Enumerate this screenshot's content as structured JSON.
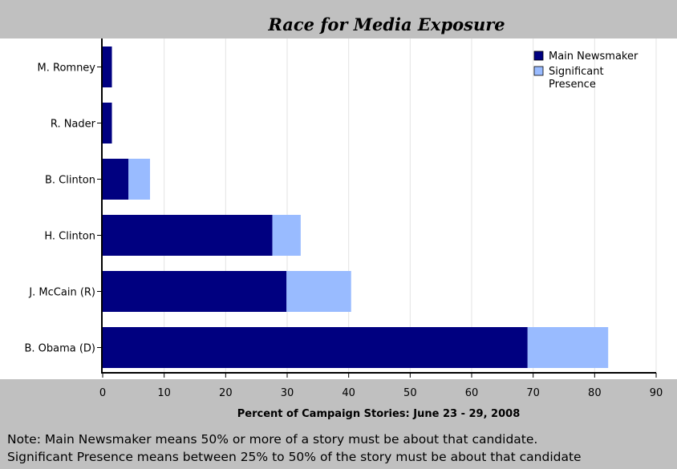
{
  "chart_data": {
    "type": "bar",
    "orientation": "horizontal",
    "stacked": true,
    "title": "Race for Media Exposure",
    "xlabel": "Percent of Campaign Stories: June 23 - 29, 2008",
    "ylabel": "",
    "xlim": [
      0,
      90
    ],
    "xticks": [
      0,
      10,
      20,
      30,
      40,
      50,
      60,
      70,
      80,
      90
    ],
    "grid": true,
    "legend_position": "top-right",
    "categories": [
      "M. Romney",
      "R. Nader",
      "B. Clinton",
      "H. Clinton",
      "J. McCain (R)",
      "B. Obama (D)"
    ],
    "series": [
      {
        "name": "Main Newsmaker",
        "color": "#000080",
        "values": [
          1.5,
          1.5,
          4.2,
          27.6,
          29.9,
          69.1
        ]
      },
      {
        "name": "Significant Presence",
        "color": "#99bbff",
        "values": [
          0,
          0,
          3.5,
          4.6,
          10.5,
          13.1
        ]
      }
    ]
  },
  "legend": {
    "items": [
      {
        "lines": [
          "Main Newsmaker"
        ],
        "color": "#000080"
      },
      {
        "lines": [
          "Significant",
          "Presence"
        ],
        "color": "#99bbff"
      }
    ]
  },
  "notes": [
    "Note: Main Newsmaker means 50% or more of a story must be about that candidate.",
    "Significant Presence means between 25% to 50% of the story must be about that candidate"
  ]
}
